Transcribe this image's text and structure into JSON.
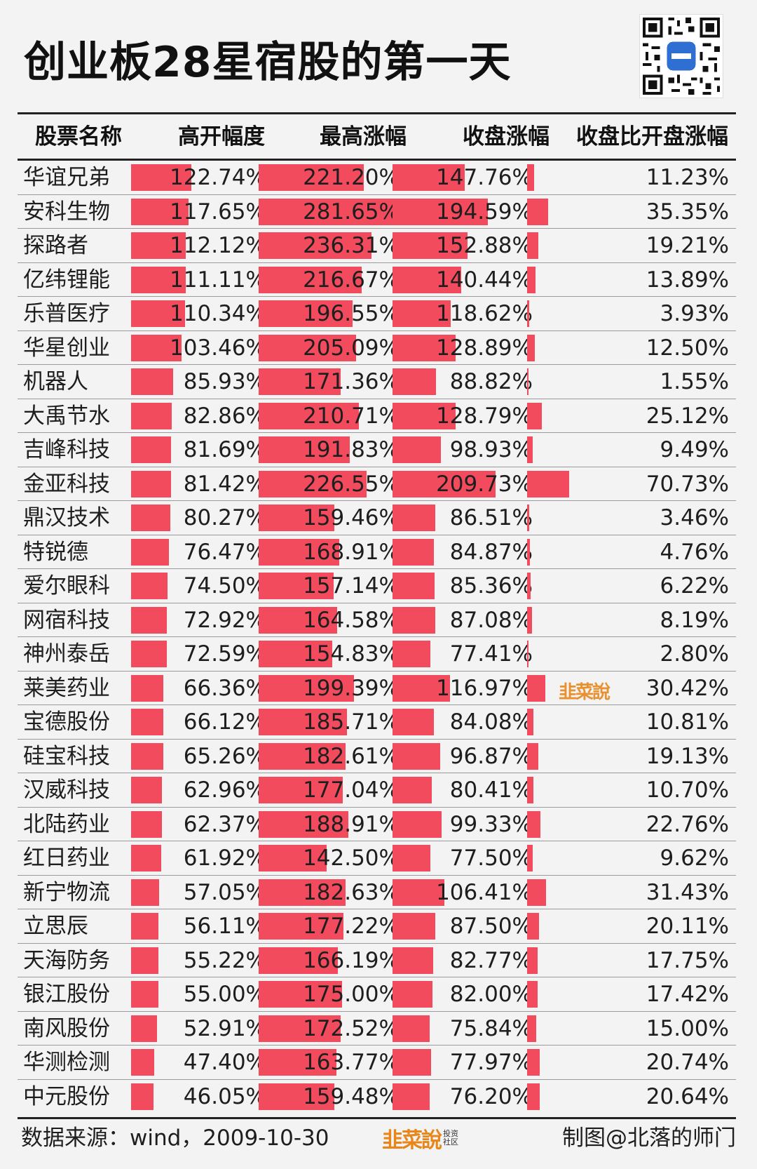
{
  "title": "创业板28星宿股的第一天",
  "headers": [
    "股票名称",
    "高开幅度",
    "最高涨幅",
    "收盘涨幅",
    "收盘比开盘涨幅"
  ],
  "chart_data": {
    "type": "table",
    "bar_color": "#f34b5e",
    "rows": [
      {
        "name": "华谊兄弟",
        "open": "122.74%",
        "high": "221.20%",
        "close": "147.76%",
        "diff": "11.23%"
      },
      {
        "name": "安科生物",
        "open": "117.65%",
        "high": "281.65%",
        "close": "194.59%",
        "diff": "35.35%"
      },
      {
        "name": "探路者",
        "open": "112.12%",
        "high": "236.31%",
        "close": "152.88%",
        "diff": "19.21%"
      },
      {
        "name": "亿纬锂能",
        "open": "111.11%",
        "high": "216.67%",
        "close": "140.44%",
        "diff": "13.89%"
      },
      {
        "name": "乐普医疗",
        "open": "110.34%",
        "high": "196.55%",
        "close": "118.62%",
        "diff": "3.93%"
      },
      {
        "name": "华星创业",
        "open": "103.46%",
        "high": "205.09%",
        "close": "128.89%",
        "diff": "12.50%"
      },
      {
        "name": "机器人",
        "open": "85.93%",
        "high": "171.36%",
        "close": "88.82%",
        "diff": "1.55%"
      },
      {
        "name": "大禹节水",
        "open": "82.86%",
        "high": "210.71%",
        "close": "128.79%",
        "diff": "25.12%"
      },
      {
        "name": "吉峰科技",
        "open": "81.69%",
        "high": "191.83%",
        "close": "98.93%",
        "diff": "9.49%"
      },
      {
        "name": "金亚科技",
        "open": "81.42%",
        "high": "226.55%",
        "close": "209.73%",
        "diff": "70.73%"
      },
      {
        "name": "鼎汉技术",
        "open": "80.27%",
        "high": "159.46%",
        "close": "86.51%",
        "diff": "3.46%"
      },
      {
        "name": "特锐德",
        "open": "76.47%",
        "high": "168.91%",
        "close": "84.87%",
        "diff": "4.76%"
      },
      {
        "name": "爱尔眼科",
        "open": "74.50%",
        "high": "157.14%",
        "close": "85.36%",
        "diff": "6.22%"
      },
      {
        "name": "网宿科技",
        "open": "72.92%",
        "high": "164.58%",
        "close": "87.08%",
        "diff": "8.19%"
      },
      {
        "name": "神州泰岳",
        "open": "72.59%",
        "high": "154.83%",
        "close": "77.41%",
        "diff": "2.80%"
      },
      {
        "name": "莱美药业",
        "open": "66.36%",
        "high": "199.39%",
        "close": "116.97%",
        "diff": "30.42%"
      },
      {
        "name": "宝德股份",
        "open": "66.12%",
        "high": "185.71%",
        "close": "84.08%",
        "diff": "10.81%"
      },
      {
        "name": "硅宝科技",
        "open": "65.26%",
        "high": "182.61%",
        "close": "96.87%",
        "diff": "19.13%"
      },
      {
        "name": "汉威科技",
        "open": "62.96%",
        "high": "177.04%",
        "close": "80.41%",
        "diff": "10.70%"
      },
      {
        "name": "北陆药业",
        "open": "62.37%",
        "high": "188.91%",
        "close": "99.33%",
        "diff": "22.76%"
      },
      {
        "name": "红日药业",
        "open": "61.92%",
        "high": "142.50%",
        "close": "77.50%",
        "diff": "9.62%"
      },
      {
        "name": "新宁物流",
        "open": "57.05%",
        "high": "182.63%",
        "close": "106.41%",
        "diff": "31.43%"
      },
      {
        "name": "立思辰",
        "open": "56.11%",
        "high": "177.22%",
        "close": "87.50%",
        "diff": "20.11%"
      },
      {
        "name": "天海防务",
        "open": "55.22%",
        "high": "166.19%",
        "close": "82.77%",
        "diff": "17.75%"
      },
      {
        "name": "银江股份",
        "open": "55.00%",
        "high": "175.00%",
        "close": "82.00%",
        "diff": "17.42%"
      },
      {
        "name": "南风股份",
        "open": "52.91%",
        "high": "172.52%",
        "close": "75.84%",
        "diff": "15.00%"
      },
      {
        "name": "华测检测",
        "open": "47.40%",
        "high": "163.77%",
        "close": "77.97%",
        "diff": "20.74%"
      },
      {
        "name": "中元股份",
        "open": "46.05%",
        "high": "159.48%",
        "close": "76.20%",
        "diff": "20.64%"
      }
    ]
  },
  "footer": {
    "source": "数据来源：wind，2009-10-30",
    "credit": "制图@北落的师门",
    "logo_text": "韭菜說",
    "logo_sub1": "投资",
    "logo_sub2": "社区",
    "logo_url": "WWW.JIUCAISHUO.COM"
  }
}
